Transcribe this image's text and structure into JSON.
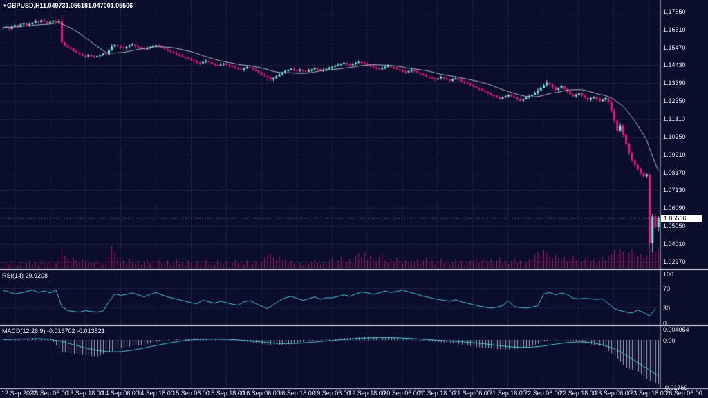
{
  "header": {
    "marker_icon": "▼",
    "symbol": "GBPUSD,H1",
    "open": "1.04973",
    "high": "1.05618",
    "low": "1.04700",
    "close": "1.05506"
  },
  "rsi": {
    "label": "RSI(14) 29.9208",
    "levels": [
      "100",
      "70",
      "30",
      "0"
    ]
  },
  "macd": {
    "label": "MACD(12,26,9) -0.016702 -0.013521",
    "levels": [
      "0.004054",
      "0.00",
      "-0.01769"
    ]
  },
  "price_box": {
    "value": "1.05506"
  },
  "axis": {
    "price_labels": [
      "1.17550",
      "1.16510",
      "1.15470",
      "1.14430",
      "1.13390",
      "1.12350",
      "1.11310",
      "1.10250",
      "1.09210",
      "1.08170",
      "1.07130",
      "1.06090",
      "1.05050",
      "1.04010",
      "1.02970"
    ],
    "time_labels": [
      "12 Sep 2022",
      "13 Sep 06:00",
      "13 Sep 18:00",
      "14 Sep 06:00",
      "14 Sep 18:00",
      "15 Sep 06:00",
      "15 Sep 18:00",
      "16 Sep 06:00",
      "16 Sep 18:00",
      "19 Sep 06:00",
      "19 Sep 18:00",
      "20 Sep 06:00",
      "20 Sep 18:00",
      "21 Sep 06:00",
      "21 Sep 18:00",
      "22 Sep 06:00",
      "22 Sep 18:00",
      "23 Sep 06:00",
      "23 Sep 18:00",
      "26 Sep 06:00"
    ]
  },
  "colors": {
    "background": "#0a0e2c",
    "grid": "#3a4268",
    "bull": "#7ce6d8",
    "bear": "#f01579",
    "volume": "#b6145f",
    "ma_line": "#b9bac6",
    "indicator_line": "#52c5d8",
    "macd_histogram": "#a2a6ba",
    "divider": "#cfd2de",
    "axis_text": "#e6e8f2",
    "price_box_bg": "#ffffff",
    "price_box_text": "#000000",
    "current_price_line": "#9aa0b6"
  },
  "chart_data": {
    "type": "candlestick",
    "symbol": "GBPUSD",
    "timeframe": "H1",
    "current_bar": {
      "open": 1.04973,
      "high": 1.05618,
      "low": 1.047,
      "close": 1.05506
    },
    "current_price": 1.05506,
    "price_ticks": [
      1.1755,
      1.1651,
      1.1547,
      1.1443,
      1.1339,
      1.1235,
      1.1131,
      1.1025,
      1.0921,
      1.0817,
      1.0713,
      1.0609,
      1.0505,
      1.0401,
      1.0297
    ],
    "rsi_ticks": [
      100,
      70,
      30,
      0
    ],
    "rsi_dotted_levels": [
      70,
      30
    ],
    "macd_ticks": [
      0.004054,
      0,
      -0.01769
    ],
    "time_labels": [
      "12 Sep 2022",
      "13 Sep 06:00",
      "13 Sep 18:00",
      "14 Sep 06:00",
      "14 Sep 18:00",
      "15 Sep 06:00",
      "15 Sep 18:00",
      "16 Sep 06:00",
      "16 Sep 18:00",
      "19 Sep 06:00",
      "19 Sep 18:00",
      "20 Sep 06:00",
      "20 Sep 18:00",
      "21 Sep 06:00",
      "21 Sep 18:00",
      "22 Sep 06:00",
      "22 Sep 18:00",
      "23 Sep 06:00",
      "23 Sep 18:00",
      "26 Sep 06:00"
    ],
    "bar_count": 224,
    "candles": {
      "open_first": 1.1658,
      "open_overrides": {
        "223": 1.04973
      },
      "closes": [
        1.1662,
        1.1668,
        1.1655,
        1.167,
        1.1678,
        1.167,
        1.1681,
        1.1688,
        1.1676,
        1.1683,
        1.169,
        1.1701,
        1.1694,
        1.1705,
        1.1697,
        1.1689,
        1.1696,
        1.1703,
        1.1694,
        1.1701,
        1.1576,
        1.156,
        1.1548,
        1.1539,
        1.1526,
        1.1518,
        1.1509,
        1.15,
        1.1494,
        1.1503,
        1.1496,
        1.149,
        1.1496,
        1.1503,
        1.1511,
        1.1506,
        1.1531,
        1.1552,
        1.1561,
        1.1555,
        1.1547,
        1.1542,
        1.1551,
        1.1559,
        1.1563,
        1.1555,
        1.1548,
        1.1541,
        1.1535,
        1.1543,
        1.1549,
        1.1555,
        1.1561,
        1.1552,
        1.1545,
        1.1538,
        1.153,
        1.1522,
        1.1515,
        1.1507,
        1.15,
        1.1492,
        1.1485,
        1.1479,
        1.1472,
        1.1466,
        1.1459,
        1.1454,
        1.1462,
        1.1469,
        1.1461,
        1.1453,
        1.1445,
        1.144,
        1.1447,
        1.1453,
        1.1446,
        1.1439,
        1.1433,
        1.1427,
        1.1421,
        1.1417,
        1.1425,
        1.1432,
        1.1426,
        1.1419,
        1.1411,
        1.14,
        1.1389,
        1.138,
        1.1371,
        1.136,
        1.1368,
        1.1378,
        1.1391,
        1.1401,
        1.1409,
        1.1416,
        1.1421,
        1.1415,
        1.1409,
        1.1417,
        1.1411,
        1.1405,
        1.1412,
        1.1418,
        1.1425,
        1.1418,
        1.1411,
        1.1416,
        1.1421,
        1.1427,
        1.1433,
        1.1439,
        1.1445,
        1.1451,
        1.1457,
        1.145,
        1.1443,
        1.145,
        1.1457,
        1.1462,
        1.1456,
        1.1449,
        1.1443,
        1.1437,
        1.1431,
        1.1425,
        1.1419,
        1.1426,
        1.1433,
        1.1439,
        1.1432,
        1.1425,
        1.1419,
        1.1413,
        1.1407,
        1.1401,
        1.1408,
        1.1415,
        1.1408,
        1.1399,
        1.1391,
        1.1384,
        1.1377,
        1.1371,
        1.1365,
        1.1359,
        1.1366,
        1.1373,
        1.1366,
        1.1359,
        1.1353,
        1.136,
        1.1367,
        1.1359,
        1.1351,
        1.1343,
        1.1335,
        1.1327,
        1.1319,
        1.1311,
        1.1303,
        1.1295,
        1.1287,
        1.1279,
        1.1271,
        1.1263,
        1.1255,
        1.1247,
        1.1255,
        1.1262,
        1.127,
        1.1261,
        1.1253,
        1.1245,
        1.1237,
        1.1246,
        1.1254,
        1.1263,
        1.1271,
        1.1281,
        1.1296,
        1.1311,
        1.1326,
        1.1341,
        1.133,
        1.1314,
        1.1299,
        1.131,
        1.1321,
        1.1305,
        1.1289,
        1.1274,
        1.1261,
        1.127,
        1.1279,
        1.1266,
        1.1253,
        1.1241,
        1.125,
        1.1259,
        1.1246,
        1.1233,
        1.1242,
        1.1251,
        1.123,
        1.1178,
        1.1121,
        1.1062,
        1.1091,
        1.1038,
        1.0982,
        1.0931,
        1.0889,
        1.0859,
        1.0839,
        1.0815,
        1.0794,
        1.0806,
        1.0405,
        1.056,
        1.0497,
        1.05506
      ],
      "wick_up_pts": [
        5,
        9,
        3,
        7,
        11,
        4,
        8,
        3,
        6,
        10,
        5,
        9,
        3,
        7,
        11,
        4,
        8,
        3,
        6,
        10,
        37,
        4,
        8,
        3,
        6,
        9,
        4,
        7,
        3,
        6,
        8,
        4,
        7,
        3,
        6,
        9,
        10,
        14,
        8,
        6,
        5,
        9,
        3,
        7,
        11,
        4,
        8,
        3,
        6,
        10,
        5,
        9,
        3,
        7,
        11,
        4,
        8,
        3,
        6,
        10,
        5,
        9,
        3,
        7,
        11,
        4,
        8,
        3,
        6,
        10,
        5,
        9,
        3,
        7,
        11,
        4,
        8,
        3,
        6,
        10,
        5,
        9,
        3,
        7,
        11,
        4,
        8,
        3,
        6,
        10,
        5,
        9,
        3,
        7,
        11,
        4,
        8,
        3,
        6,
        10,
        5,
        9,
        3,
        7,
        11,
        4,
        8,
        3,
        6,
        10,
        5,
        9,
        3,
        7,
        11,
        4,
        8,
        3,
        6,
        10,
        5,
        9,
        3,
        7,
        11,
        4,
        8,
        3,
        6,
        10,
        5,
        9,
        3,
        7,
        11,
        4,
        8,
        3,
        6,
        10,
        5,
        9,
        3,
        7,
        11,
        4,
        8,
        3,
        6,
        10,
        5,
        9,
        3,
        7,
        11,
        4,
        8,
        3,
        6,
        10,
        5,
        9,
        3,
        7,
        11,
        4,
        8,
        3,
        6,
        10,
        5,
        9,
        3,
        7,
        11,
        4,
        8,
        3,
        6,
        10,
        6,
        9,
        12,
        10,
        8,
        15,
        9,
        6,
        8,
        5,
        9,
        3,
        7,
        11,
        4,
        8,
        3,
        6,
        10,
        5,
        9,
        3,
        7,
        11,
        4,
        8,
        8,
        10,
        12,
        9,
        14,
        11,
        9,
        12,
        10,
        8,
        9,
        7,
        8,
        6,
        2,
        15,
        18,
        11
      ],
      "wick_dn_pts": [
        7,
        4,
        10,
        5,
        3,
        9,
        6,
        12,
        4,
        8,
        7,
        4,
        10,
        5,
        3,
        9,
        6,
        12,
        4,
        8,
        23,
        7,
        4,
        10,
        5,
        3,
        9,
        6,
        12,
        4,
        8,
        6,
        4,
        9,
        5,
        3,
        8,
        6,
        4,
        7,
        7,
        4,
        10,
        5,
        3,
        9,
        6,
        12,
        4,
        8,
        7,
        4,
        10,
        5,
        3,
        9,
        6,
        12,
        4,
        8,
        7,
        4,
        10,
        5,
        3,
        9,
        6,
        12,
        4,
        8,
        7,
        4,
        10,
        5,
        3,
        9,
        6,
        12,
        4,
        8,
        7,
        4,
        10,
        5,
        3,
        9,
        6,
        12,
        4,
        8,
        19,
        8,
        10,
        5,
        3,
        9,
        6,
        12,
        4,
        8,
        7,
        4,
        10,
        5,
        3,
        9,
        6,
        12,
        4,
        8,
        7,
        4,
        10,
        5,
        3,
        9,
        6,
        12,
        4,
        8,
        7,
        4,
        10,
        5,
        3,
        9,
        6,
        12,
        4,
        8,
        7,
        4,
        10,
        5,
        3,
        9,
        6,
        12,
        4,
        8,
        7,
        4,
        10,
        5,
        3,
        9,
        6,
        12,
        4,
        8,
        7,
        4,
        10,
        5,
        3,
        9,
        6,
        12,
        4,
        8,
        7,
        4,
        10,
        5,
        3,
        9,
        6,
        12,
        4,
        8,
        7,
        4,
        10,
        5,
        3,
        9,
        6,
        12,
        4,
        8,
        7,
        4,
        10,
        5,
        3,
        9,
        6,
        12,
        4,
        8,
        7,
        4,
        10,
        5,
        3,
        9,
        6,
        12,
        4,
        8,
        7,
        4,
        10,
        5,
        3,
        9,
        10,
        14,
        12,
        16,
        9,
        13,
        15,
        11,
        12,
        14,
        9,
        12,
        10,
        7,
        22,
        53,
        10,
        27
      ]
    },
    "tick_volume": [
      5,
      8,
      4,
      10,
      6,
      4,
      9,
      3,
      7,
      11,
      6,
      9,
      4,
      11,
      7,
      5,
      10,
      3,
      8,
      12,
      26,
      18,
      14,
      12,
      15,
      11,
      9,
      13,
      10,
      8,
      9,
      7,
      11,
      8,
      6,
      10,
      20,
      33,
      24,
      15,
      8,
      11,
      6,
      13,
      9,
      6,
      12,
      4,
      9,
      14,
      7,
      10,
      5,
      12,
      8,
      6,
      11,
      4,
      9,
      13,
      6,
      9,
      4,
      11,
      7,
      5,
      10,
      3,
      8,
      12,
      6,
      9,
      4,
      11,
      7,
      5,
      10,
      3,
      8,
      12,
      7,
      10,
      5,
      12,
      8,
      6,
      11,
      4,
      9,
      16,
      19,
      22,
      15,
      12,
      17,
      10,
      13,
      8,
      11,
      6,
      5,
      8,
      4,
      10,
      6,
      9,
      12,
      7,
      5,
      9,
      6,
      10,
      14,
      8,
      11,
      16,
      12,
      9,
      13,
      7,
      18,
      22,
      15,
      24,
      12,
      19,
      14,
      10,
      16,
      21,
      11,
      8,
      13,
      9,
      15,
      10,
      7,
      12,
      8,
      11,
      9,
      13,
      7,
      11,
      15,
      8,
      12,
      6,
      10,
      14,
      7,
      11,
      5,
      9,
      13,
      6,
      10,
      4,
      8,
      12,
      10,
      14,
      8,
      12,
      16,
      9,
      13,
      7,
      11,
      15,
      8,
      12,
      6,
      10,
      14,
      7,
      11,
      5,
      9,
      13,
      16,
      20,
      24,
      18,
      26,
      22,
      17,
      14,
      19,
      15,
      12,
      16,
      10,
      14,
      18,
      11,
      15,
      9,
      13,
      17,
      10,
      14,
      8,
      12,
      16,
      12,
      18,
      22,
      26,
      20,
      28,
      24,
      19,
      23,
      27,
      21,
      17,
      20,
      15,
      18,
      33,
      30,
      24,
      27
    ],
    "ma": {
      "type": "sma",
      "period": 16
    },
    "rsi": {
      "period": 14,
      "current": 29.9208,
      "bar_step": 2,
      "values": [
        65,
        62,
        58,
        60,
        63,
        66,
        61,
        64,
        60,
        66,
        32,
        24,
        22,
        21,
        24,
        22,
        21,
        23,
        42,
        58,
        55,
        57,
        60,
        56,
        52,
        57,
        61,
        56,
        52,
        49,
        46,
        43,
        40,
        38,
        45,
        42,
        39,
        43,
        40,
        37,
        35,
        42,
        44,
        38,
        33,
        28,
        36,
        44,
        50,
        53,
        49,
        45,
        48,
        52,
        47,
        50,
        50,
        53,
        56,
        53,
        58,
        62,
        60,
        57,
        60,
        64,
        61,
        63,
        66,
        62,
        59,
        55,
        52,
        49,
        47,
        45,
        43,
        46,
        42,
        39,
        36,
        33,
        31,
        29,
        31,
        34,
        44,
        32,
        30,
        29,
        31,
        34,
        58,
        61,
        56,
        60,
        57,
        49,
        48,
        49,
        48,
        47,
        48,
        38,
        28,
        24,
        21,
        19,
        25,
        20,
        13,
        28
      ]
    },
    "macd": {
      "fast": 12,
      "slow": 26,
      "signal_period": 9,
      "main_current": -0.016702,
      "signal_current": -0.013521,
      "signal_points": {
        "bars": [
          0,
          8,
          16,
          24,
          32,
          40,
          48,
          56,
          64,
          72,
          80,
          88,
          96,
          104,
          112,
          120,
          128,
          136,
          144,
          152,
          160,
          168,
          176,
          184,
          192,
          200,
          208,
          216,
          223
        ],
        "values": [
          0.0002,
          0.0004,
          0.0006,
          -0.0018,
          -0.0042,
          -0.0047,
          -0.003,
          -0.0012,
          0.0002,
          0.0004,
          0.0001,
          -0.0008,
          -0.0016,
          -0.001,
          -0.0002,
          0.0006,
          0.001,
          0.0008,
          0.0002,
          -0.0004,
          -0.001,
          -0.002,
          -0.003,
          -0.0024,
          -0.0008,
          -0.0007,
          -0.003,
          -0.0085,
          -0.013521
        ]
      },
      "main_points": {
        "bars": [
          0,
          4,
          8,
          12,
          16,
          20,
          24,
          28,
          32,
          36,
          40,
          44,
          48,
          52,
          56,
          60,
          64,
          68,
          72,
          76,
          80,
          84,
          88,
          92,
          96,
          100,
          104,
          108,
          112,
          116,
          120,
          124,
          128,
          132,
          136,
          140,
          144,
          148,
          152,
          156,
          160,
          164,
          168,
          172,
          176,
          180,
          184,
          188,
          192,
          196,
          200,
          204,
          208,
          212,
          216,
          220,
          223
        ],
        "values": [
          0.0003,
          0.0005,
          0.0006,
          0.0008,
          0.0004,
          -0.0045,
          -0.0052,
          -0.0058,
          -0.0062,
          -0.0045,
          -0.003,
          -0.0024,
          -0.0018,
          -0.0008,
          0.0002,
          0.0004,
          0.0006,
          0.0006,
          0.0005,
          0.0002,
          -0.0002,
          -0.0008,
          -0.0016,
          -0.002,
          -0.0018,
          -0.001,
          -0.0004,
          0.0002,
          0.0004,
          0.0007,
          0.001,
          0.0012,
          0.0011,
          0.0009,
          0.0006,
          0.0001,
          -0.0004,
          -0.0008,
          -0.0012,
          -0.0018,
          -0.0024,
          -0.003,
          -0.0034,
          -0.0036,
          -0.0032,
          -0.0022,
          -0.0006,
          0.0002,
          -0.0002,
          -0.0008,
          -0.0016,
          -0.0024,
          -0.006,
          -0.0105,
          -0.012,
          -0.0155,
          -0.016702
        ]
      }
    }
  }
}
